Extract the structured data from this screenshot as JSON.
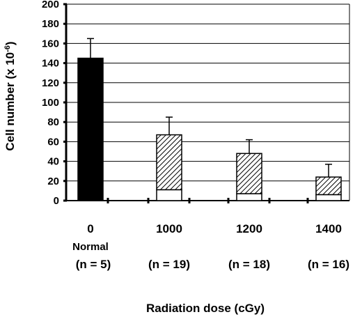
{
  "chart_data": {
    "type": "bar",
    "title": "",
    "xlabel": "Radiation dose (cGy)",
    "ylabel": "Cell number (x 10",
    "ylabel_sup": "-6",
    "ylabel_close": ")",
    "ylim": [
      0,
      200
    ],
    "yticks": [
      0,
      20,
      40,
      60,
      80,
      100,
      120,
      140,
      160,
      180,
      200
    ],
    "grid": true,
    "categories": [
      "0",
      "1000",
      "1200",
      "1400"
    ],
    "sublabels": [
      "Normal",
      "",
      "",
      ""
    ],
    "n_labels": [
      "(n = 5)",
      "(n = 19)",
      "(n = 18)",
      "(n = 16)"
    ],
    "series": [
      {
        "values": [
          145,
          11,
          7,
          6
        ],
        "errors": [
          20,
          null,
          null,
          null
        ],
        "fill": "#000000"
      },
      {
        "values": [
          0,
          56,
          41,
          18
        ],
        "errors": [
          null,
          18,
          14,
          13
        ],
        "fill": "hatched"
      }
    ]
  }
}
